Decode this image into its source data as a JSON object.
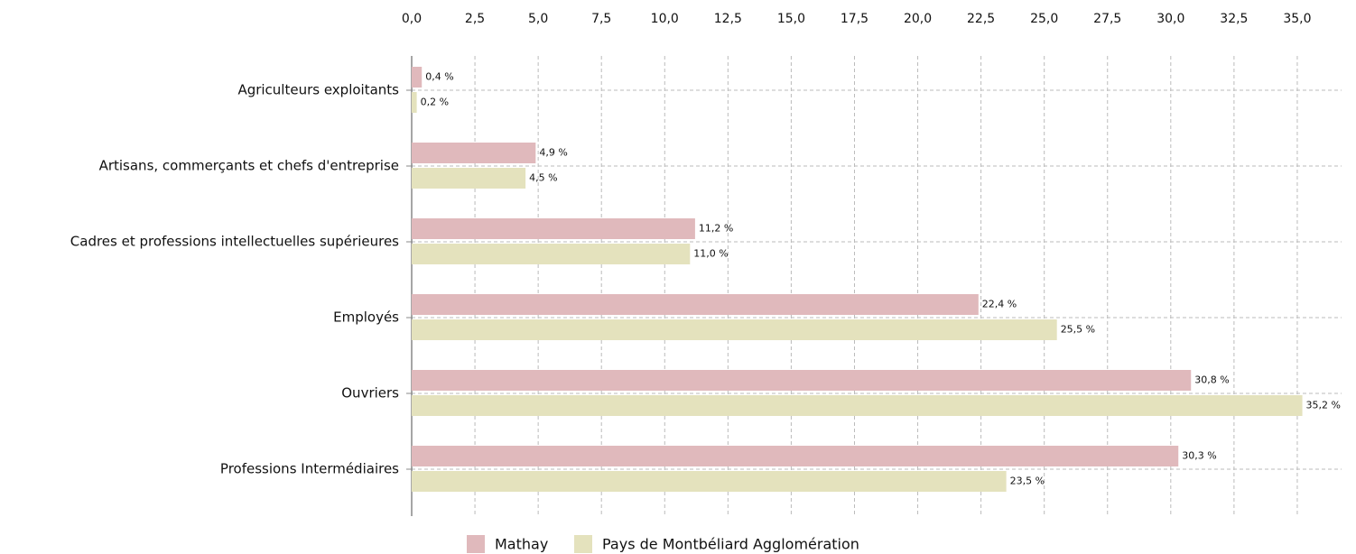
{
  "chart_data": {
    "type": "hbar",
    "categories": [
      "Agriculteurs exploitants",
      "Artisans, commerçants et chefs d'entreprise",
      "Cadres et professions intellectuelles supérieures",
      "Employés",
      "Ouvriers",
      "Professions Intermédiaires"
    ],
    "series": [
      {
        "name": "Mathay",
        "color": "#e0b9bc",
        "values": [
          0.4,
          4.9,
          11.2,
          22.4,
          30.8,
          30.3
        ],
        "value_labels": [
          "0,4 %",
          "4,9 %",
          "11,2 %",
          "22,4 %",
          "30,8 %",
          "30,3 %"
        ]
      },
      {
        "name": "Pays de Montbéliard Agglomération",
        "color": "#e4e2bd",
        "values": [
          0.2,
          4.5,
          11.0,
          25.5,
          35.2,
          23.5
        ],
        "value_labels": [
          "0,2 %",
          "4,5 %",
          "11,0 %",
          "25,5 %",
          "35,2 %",
          "23,5 %"
        ]
      }
    ],
    "xlim": [
      0,
      36.75
    ],
    "xticks": [
      {
        "value": 0,
        "label": "0,0"
      },
      {
        "value": 2.5,
        "label": "2,5"
      },
      {
        "value": 5,
        "label": "5,0"
      },
      {
        "value": 7.5,
        "label": "7,5"
      },
      {
        "value": 10,
        "label": "10,0"
      },
      {
        "value": 12.5,
        "label": "12,5"
      },
      {
        "value": 15,
        "label": "15,0"
      },
      {
        "value": 17.5,
        "label": "17,5"
      },
      {
        "value": 20,
        "label": "20,0"
      },
      {
        "value": 22.5,
        "label": "22,5"
      },
      {
        "value": 25,
        "label": "25,0"
      },
      {
        "value": 27.5,
        "label": "27,5"
      },
      {
        "value": 30,
        "label": "30,0"
      },
      {
        "value": 32.5,
        "label": "32,5"
      },
      {
        "value": 35,
        "label": "35,0"
      }
    ],
    "grid": true
  }
}
